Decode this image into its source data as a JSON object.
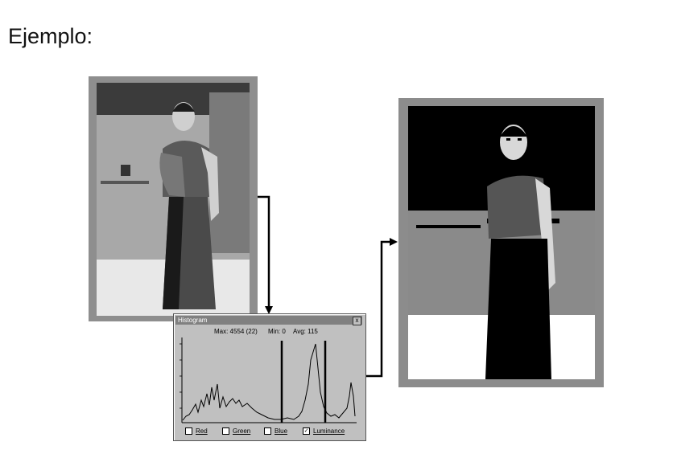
{
  "heading": "Ejemplo:",
  "histogram_window": {
    "title": "Histogram",
    "close_glyph": "x",
    "stats": {
      "max": "Max: 4554 (22)",
      "min": "Min: 0",
      "avg": "Avg: 115"
    },
    "channels": [
      {
        "label": "Red",
        "checked": false,
        "mark": ""
      },
      {
        "label": "Green",
        "checked": false,
        "mark": ""
      },
      {
        "label": "Blue",
        "checked": false,
        "mark": ""
      },
      {
        "label": "Luminance",
        "checked": true,
        "mark": "✓"
      }
    ]
  },
  "icons": [
    "close-icon",
    "checkbox-icon",
    "arrow-icon"
  ],
  "colors": {
    "window_bg": "#c0c0c0",
    "titlebar": "#808080",
    "frame": "#8c8c8c"
  }
}
